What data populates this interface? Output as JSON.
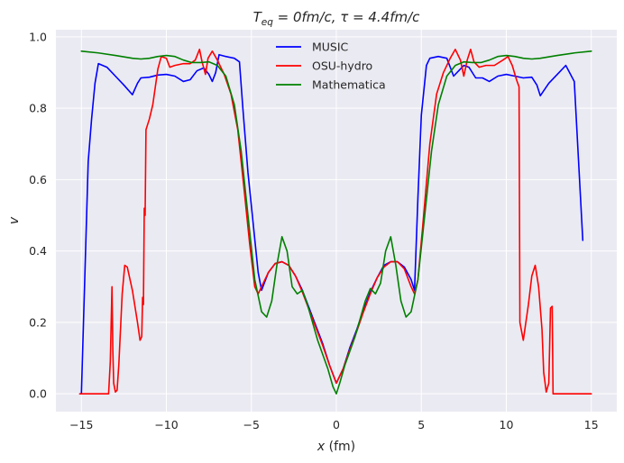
{
  "chart_data": {
    "type": "line",
    "title": "T_eq = 0fm/c, τ = 4.4fm/c",
    "title_parts": {
      "t": "T",
      "sub": "eq",
      "rest": " = 0fm/c, τ = 4.4fm/c"
    },
    "xlabel_parts": {
      "var": "x",
      "unit": " (fm)"
    },
    "ylabel": "v",
    "xlim": [
      -16.5,
      16.5
    ],
    "ylim": [
      -0.05,
      1.02
    ],
    "xticks": [
      -15,
      -10,
      -5,
      0,
      5,
      10,
      15
    ],
    "xtick_labels": [
      "−15",
      "−10",
      "−5",
      "0",
      "5",
      "10",
      "15"
    ],
    "yticks": [
      0.0,
      0.2,
      0.4,
      0.6,
      0.8,
      1.0
    ],
    "ytick_labels": [
      "0.0",
      "0.2",
      "0.4",
      "0.6",
      "0.8",
      "1.0"
    ],
    "grid": true,
    "legend_position": "top-center",
    "series": [
      {
        "name": "MUSIC",
        "color": "#0000ff",
        "points": [
          [
            -15.0,
            0.0
          ],
          [
            -14.6,
            0.65
          ],
          [
            -14.4,
            0.77
          ],
          [
            -14.2,
            0.87
          ],
          [
            -14.0,
            0.925
          ],
          [
            -13.5,
            0.915
          ],
          [
            -13.0,
            0.89
          ],
          [
            -12.5,
            0.865
          ],
          [
            -12.0,
            0.838
          ],
          [
            -11.7,
            0.87
          ],
          [
            -11.5,
            0.885
          ],
          [
            -11.0,
            0.887
          ],
          [
            -10.5,
            0.893
          ],
          [
            -10.0,
            0.895
          ],
          [
            -9.5,
            0.89
          ],
          [
            -9.0,
            0.875
          ],
          [
            -8.6,
            0.88
          ],
          [
            -8.2,
            0.905
          ],
          [
            -7.8,
            0.913
          ],
          [
            -7.5,
            0.895
          ],
          [
            -7.3,
            0.875
          ],
          [
            -7.1,
            0.9
          ],
          [
            -6.9,
            0.95
          ],
          [
            -6.5,
            0.945
          ],
          [
            -6.0,
            0.94
          ],
          [
            -5.7,
            0.93
          ],
          [
            -5.5,
            0.8
          ],
          [
            -5.2,
            0.62
          ],
          [
            -4.9,
            0.48
          ],
          [
            -4.6,
            0.34
          ],
          [
            -4.4,
            0.29
          ],
          [
            -4.0,
            0.34
          ],
          [
            -3.6,
            0.365
          ],
          [
            -3.2,
            0.37
          ],
          [
            -2.8,
            0.36
          ],
          [
            -2.4,
            0.33
          ],
          [
            -2.0,
            0.29
          ],
          [
            -1.6,
            0.24
          ],
          [
            -1.2,
            0.19
          ],
          [
            -0.8,
            0.14
          ],
          [
            -0.4,
            0.08
          ],
          [
            0.0,
            0.03
          ],
          [
            0.4,
            0.07
          ],
          [
            0.8,
            0.13
          ],
          [
            1.2,
            0.18
          ],
          [
            1.6,
            0.235
          ],
          [
            2.0,
            0.285
          ],
          [
            2.4,
            0.325
          ],
          [
            2.8,
            0.36
          ],
          [
            3.2,
            0.37
          ],
          [
            3.6,
            0.37
          ],
          [
            4.0,
            0.355
          ],
          [
            4.4,
            0.32
          ],
          [
            4.6,
            0.29
          ],
          [
            4.8,
            0.55
          ],
          [
            5.0,
            0.78
          ],
          [
            5.3,
            0.92
          ],
          [
            5.5,
            0.94
          ],
          [
            6.0,
            0.945
          ],
          [
            6.5,
            0.94
          ],
          [
            6.9,
            0.89
          ],
          [
            7.2,
            0.905
          ],
          [
            7.5,
            0.92
          ],
          [
            7.8,
            0.915
          ],
          [
            8.2,
            0.885
          ],
          [
            8.6,
            0.885
          ],
          [
            9.0,
            0.875
          ],
          [
            9.5,
            0.89
          ],
          [
            10.0,
            0.895
          ],
          [
            10.5,
            0.89
          ],
          [
            11.0,
            0.885
          ],
          [
            11.5,
            0.887
          ],
          [
            11.8,
            0.865
          ],
          [
            12.0,
            0.835
          ],
          [
            12.5,
            0.87
          ],
          [
            13.0,
            0.895
          ],
          [
            13.5,
            0.92
          ],
          [
            14.0,
            0.875
          ],
          [
            14.5,
            0.43
          ]
        ]
      },
      {
        "name": "OSU-hydro",
        "color": "#ff0000",
        "points": [
          [
            -15.1,
            0.0
          ],
          [
            -13.6,
            0.0
          ],
          [
            -13.4,
            0.0
          ],
          [
            -13.3,
            0.09
          ],
          [
            -13.2,
            0.3
          ],
          [
            -13.15,
            0.12
          ],
          [
            -13.1,
            0.03
          ],
          [
            -13.0,
            0.005
          ],
          [
            -12.9,
            0.01
          ],
          [
            -12.8,
            0.08
          ],
          [
            -12.6,
            0.28
          ],
          [
            -12.45,
            0.36
          ],
          [
            -12.3,
            0.355
          ],
          [
            -12.0,
            0.29
          ],
          [
            -11.7,
            0.2
          ],
          [
            -11.55,
            0.15
          ],
          [
            -11.45,
            0.16
          ],
          [
            -11.4,
            0.27
          ],
          [
            -11.35,
            0.25
          ],
          [
            -11.3,
            0.52
          ],
          [
            -11.25,
            0.5
          ],
          [
            -11.2,
            0.74
          ],
          [
            -11.0,
            0.77
          ],
          [
            -10.8,
            0.81
          ],
          [
            -10.5,
            0.91
          ],
          [
            -10.3,
            0.945
          ],
          [
            -10.0,
            0.94
          ],
          [
            -9.8,
            0.915
          ],
          [
            -9.5,
            0.92
          ],
          [
            -9.0,
            0.925
          ],
          [
            -8.6,
            0.925
          ],
          [
            -8.3,
            0.935
          ],
          [
            -8.05,
            0.965
          ],
          [
            -7.9,
            0.93
          ],
          [
            -7.7,
            0.895
          ],
          [
            -7.55,
            0.94
          ],
          [
            -7.3,
            0.96
          ],
          [
            -7.0,
            0.935
          ],
          [
            -6.6,
            0.895
          ],
          [
            -6.2,
            0.84
          ],
          [
            -5.8,
            0.74
          ],
          [
            -5.4,
            0.56
          ],
          [
            -5.1,
            0.42
          ],
          [
            -4.8,
            0.3
          ],
          [
            -4.6,
            0.28
          ],
          [
            -4.4,
            0.3
          ],
          [
            -4.0,
            0.34
          ],
          [
            -3.6,
            0.365
          ],
          [
            -3.2,
            0.37
          ],
          [
            -2.8,
            0.36
          ],
          [
            -2.4,
            0.33
          ],
          [
            -2.0,
            0.285
          ],
          [
            -1.6,
            0.235
          ],
          [
            -1.2,
            0.185
          ],
          [
            -0.8,
            0.135
          ],
          [
            -0.4,
            0.08
          ],
          [
            0.0,
            0.03
          ],
          [
            0.4,
            0.07
          ],
          [
            0.8,
            0.125
          ],
          [
            1.2,
            0.175
          ],
          [
            1.6,
            0.23
          ],
          [
            2.0,
            0.28
          ],
          [
            2.4,
            0.325
          ],
          [
            2.8,
            0.355
          ],
          [
            3.2,
            0.37
          ],
          [
            3.6,
            0.37
          ],
          [
            4.0,
            0.35
          ],
          [
            4.4,
            0.3
          ],
          [
            4.6,
            0.28
          ],
          [
            4.8,
            0.32
          ],
          [
            5.1,
            0.48
          ],
          [
            5.5,
            0.7
          ],
          [
            5.9,
            0.84
          ],
          [
            6.3,
            0.9
          ],
          [
            6.7,
            0.94
          ],
          [
            7.0,
            0.965
          ],
          [
            7.3,
            0.935
          ],
          [
            7.5,
            0.89
          ],
          [
            7.7,
            0.935
          ],
          [
            7.9,
            0.965
          ],
          [
            8.1,
            0.93
          ],
          [
            8.4,
            0.915
          ],
          [
            8.8,
            0.92
          ],
          [
            9.3,
            0.92
          ],
          [
            9.8,
            0.935
          ],
          [
            10.1,
            0.945
          ],
          [
            10.35,
            0.92
          ],
          [
            10.6,
            0.88
          ],
          [
            10.75,
            0.86
          ],
          [
            10.8,
            0.2
          ],
          [
            11.0,
            0.15
          ],
          [
            11.3,
            0.25
          ],
          [
            11.5,
            0.33
          ],
          [
            11.7,
            0.36
          ],
          [
            11.9,
            0.3
          ],
          [
            12.1,
            0.18
          ],
          [
            12.2,
            0.06
          ],
          [
            12.35,
            0.005
          ],
          [
            12.5,
            0.03
          ],
          [
            12.6,
            0.24
          ],
          [
            12.7,
            0.245
          ],
          [
            12.75,
            0.0
          ],
          [
            15.0,
            0.0
          ]
        ]
      },
      {
        "name": "Mathematica",
        "color": "#008000",
        "points": [
          [
            -15.0,
            0.96
          ],
          [
            -14.0,
            0.955
          ],
          [
            -13.0,
            0.948
          ],
          [
            -12.0,
            0.94
          ],
          [
            -11.5,
            0.938
          ],
          [
            -11.0,
            0.94
          ],
          [
            -10.5,
            0.945
          ],
          [
            -10.0,
            0.948
          ],
          [
            -9.5,
            0.945
          ],
          [
            -9.0,
            0.935
          ],
          [
            -8.5,
            0.928
          ],
          [
            -8.0,
            0.928
          ],
          [
            -7.5,
            0.93
          ],
          [
            -7.0,
            0.92
          ],
          [
            -6.5,
            0.89
          ],
          [
            -6.0,
            0.81
          ],
          [
            -5.6,
            0.68
          ],
          [
            -5.2,
            0.5
          ],
          [
            -4.8,
            0.32
          ],
          [
            -4.4,
            0.23
          ],
          [
            -4.1,
            0.215
          ],
          [
            -3.8,
            0.26
          ],
          [
            -3.5,
            0.36
          ],
          [
            -3.2,
            0.44
          ],
          [
            -2.9,
            0.4
          ],
          [
            -2.6,
            0.3
          ],
          [
            -2.3,
            0.28
          ],
          [
            -2.0,
            0.29
          ],
          [
            -1.7,
            0.25
          ],
          [
            -1.4,
            0.2
          ],
          [
            -1.1,
            0.15
          ],
          [
            -0.8,
            0.11
          ],
          [
            -0.5,
            0.07
          ],
          [
            -0.2,
            0.02
          ],
          [
            0.0,
            0.0
          ],
          [
            0.2,
            0.03
          ],
          [
            0.5,
            0.08
          ],
          [
            0.8,
            0.12
          ],
          [
            1.1,
            0.16
          ],
          [
            1.4,
            0.21
          ],
          [
            1.7,
            0.26
          ],
          [
            2.0,
            0.295
          ],
          [
            2.3,
            0.28
          ],
          [
            2.6,
            0.31
          ],
          [
            2.9,
            0.4
          ],
          [
            3.2,
            0.44
          ],
          [
            3.5,
            0.36
          ],
          [
            3.8,
            0.26
          ],
          [
            4.1,
            0.215
          ],
          [
            4.4,
            0.23
          ],
          [
            4.8,
            0.32
          ],
          [
            5.2,
            0.5
          ],
          [
            5.6,
            0.68
          ],
          [
            6.0,
            0.81
          ],
          [
            6.5,
            0.89
          ],
          [
            7.0,
            0.92
          ],
          [
            7.5,
            0.93
          ],
          [
            8.0,
            0.928
          ],
          [
            8.5,
            0.928
          ],
          [
            9.0,
            0.935
          ],
          [
            9.5,
            0.945
          ],
          [
            10.0,
            0.948
          ],
          [
            10.5,
            0.945
          ],
          [
            11.0,
            0.94
          ],
          [
            11.5,
            0.938
          ],
          [
            12.0,
            0.94
          ],
          [
            13.0,
            0.948
          ],
          [
            14.0,
            0.955
          ],
          [
            15.0,
            0.96
          ]
        ]
      }
    ]
  }
}
